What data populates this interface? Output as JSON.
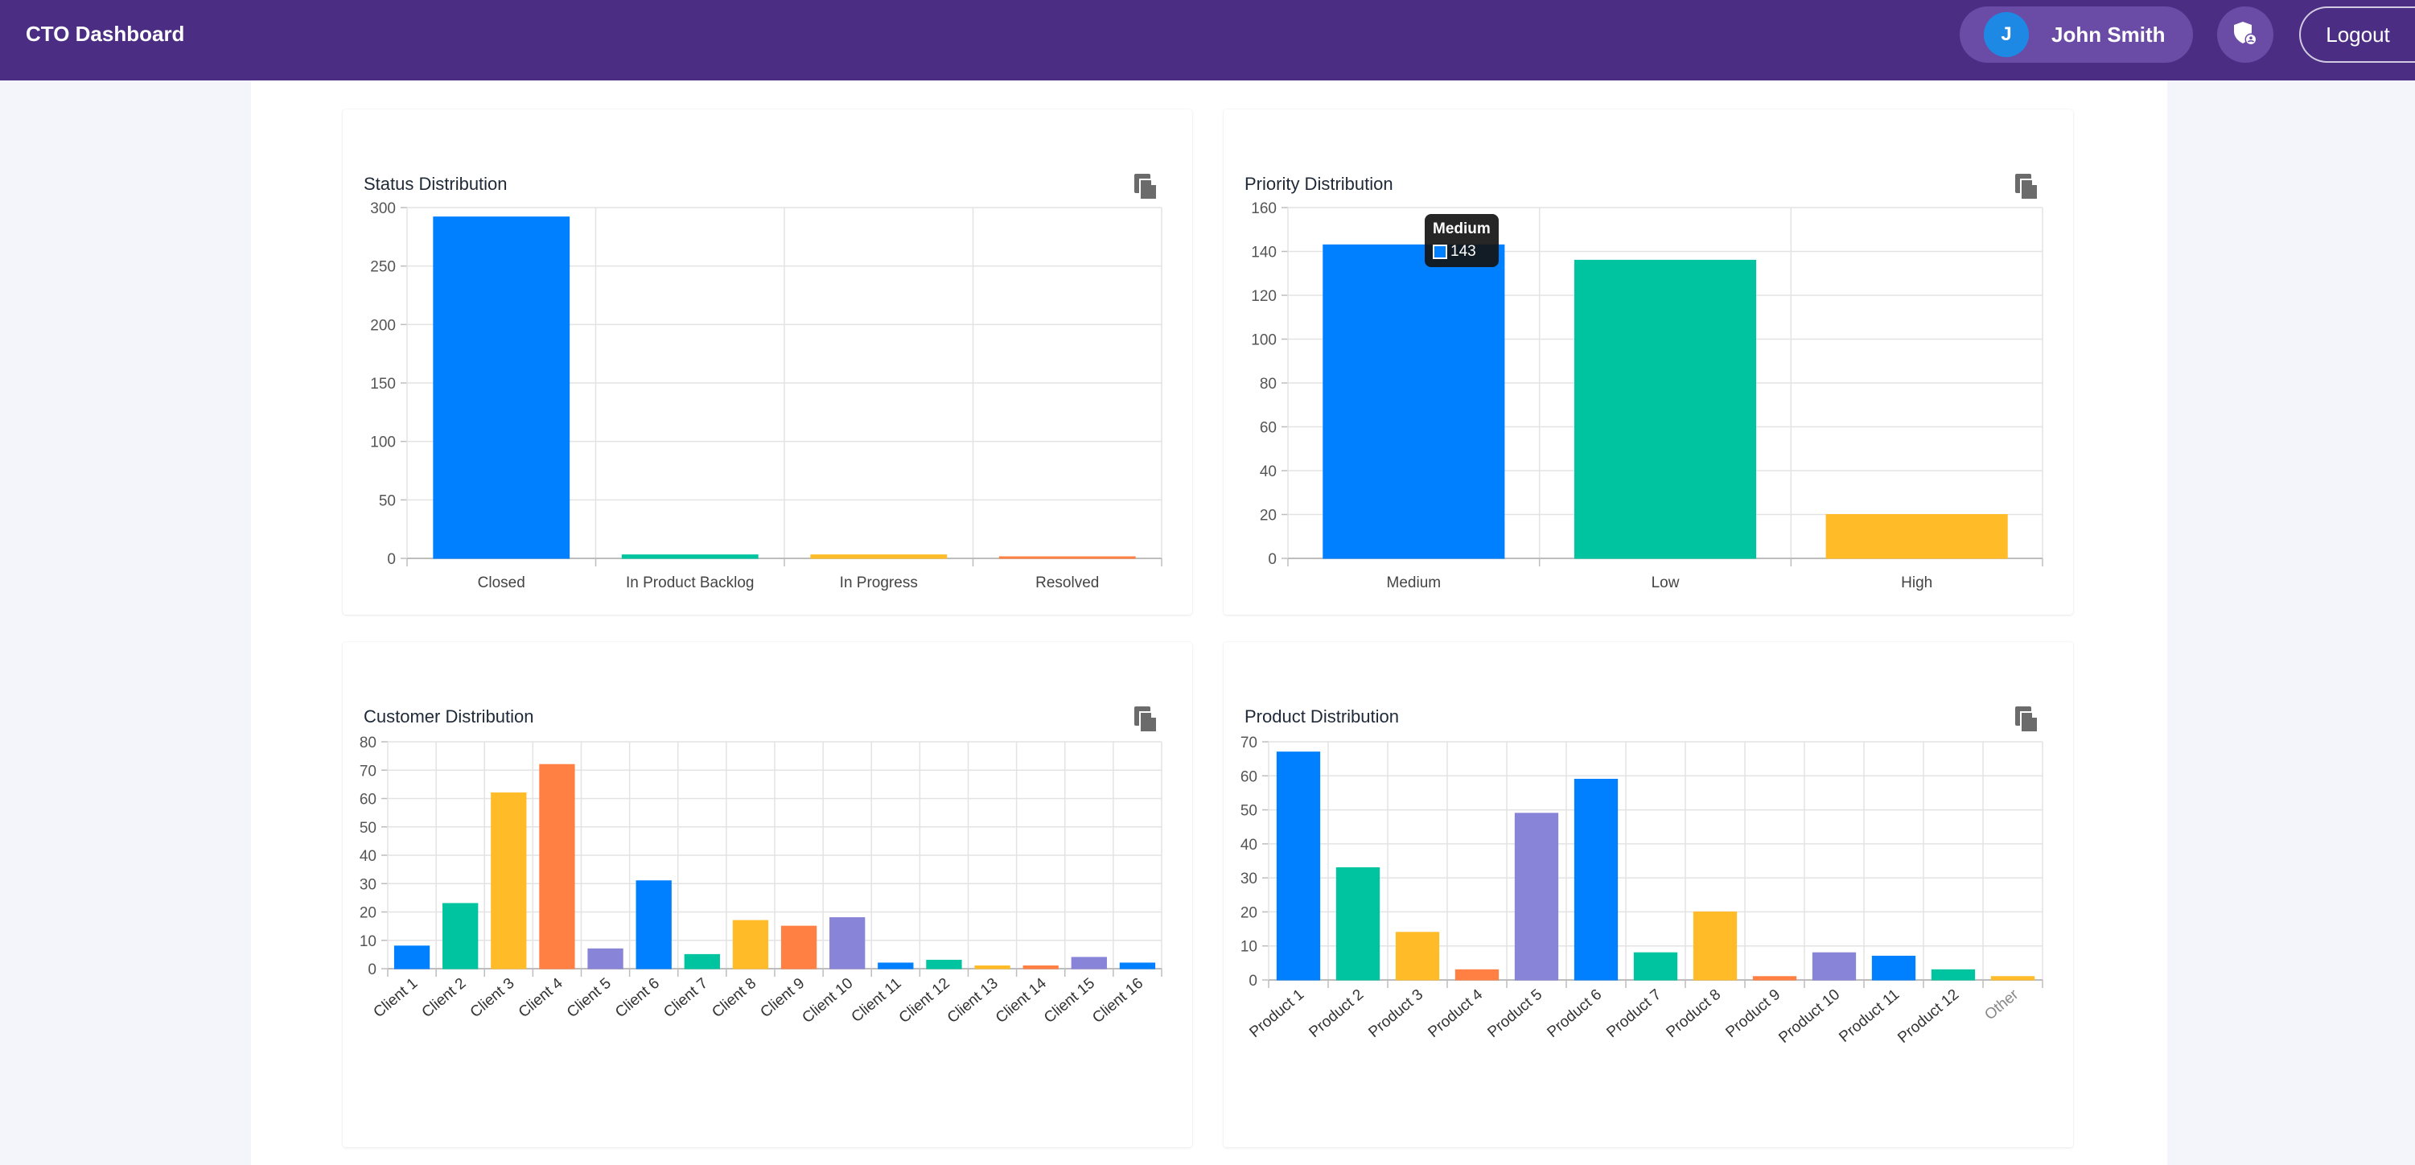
{
  "header": {
    "title": "CTO Dashboard",
    "user": {
      "initial": "J",
      "name": "John Smith"
    },
    "shield_icon": "shield-user-icon",
    "logout_label": "Logout"
  },
  "colors": {
    "header_bg": "#4b2d83",
    "blue": "#0080ff",
    "green": "#00c49f",
    "yellow": "#ffbb28",
    "orange": "#ff8042",
    "purple": "#8884d8"
  },
  "cards": {
    "status": {
      "title": "Status Distribution",
      "copy_icon": "copy-icon"
    },
    "priority": {
      "title": "Priority Distribution",
      "copy_icon": "copy-icon"
    },
    "customer": {
      "title": "Customer Distribution",
      "copy_icon": "copy-icon"
    },
    "product": {
      "title": "Product Distribution",
      "copy_icon": "copy-icon"
    }
  },
  "tooltip": {
    "title": "Medium",
    "value": "143"
  },
  "chart_data": [
    {
      "id": "status",
      "type": "bar",
      "title": "Status Distribution",
      "categories": [
        "Closed",
        "In Product Backlog",
        "In Progress",
        "Resolved"
      ],
      "values": [
        292,
        3,
        3,
        1
      ],
      "ylim": [
        0,
        300
      ],
      "yticks": [
        0,
        50,
        100,
        150,
        200,
        250,
        300
      ],
      "colors": [
        "#0080ff",
        "#00c49f",
        "#ffbb28",
        "#ff8042"
      ],
      "grid": true
    },
    {
      "id": "priority",
      "type": "bar",
      "title": "Priority Distribution",
      "categories": [
        "Medium",
        "Low",
        "High"
      ],
      "values": [
        143,
        136,
        20
      ],
      "ylim": [
        0,
        160
      ],
      "yticks": [
        0,
        20,
        40,
        60,
        80,
        100,
        120,
        140,
        160
      ],
      "colors": [
        "#0080ff",
        "#00c49f",
        "#ffbb28"
      ],
      "grid": true
    },
    {
      "id": "customer",
      "type": "bar",
      "title": "Customer Distribution",
      "categories": [
        "Client 1",
        "Client 2",
        "Client 3",
        "Client 4",
        "Client 5",
        "Client 6",
        "Client 7",
        "Client 8",
        "Client 9",
        "Client 10",
        "Client 11",
        "Client 12",
        "Client 13",
        "Client 14",
        "Client 15",
        "Client 16"
      ],
      "values": [
        8,
        23,
        62,
        72,
        7,
        31,
        5,
        17,
        15,
        18,
        2,
        3,
        1,
        1,
        4,
        2
      ],
      "ylim": [
        0,
        80
      ],
      "yticks": [
        0,
        10,
        20,
        30,
        40,
        50,
        60,
        70,
        80
      ],
      "colors": [
        "#0080ff",
        "#00c49f",
        "#ffbb28",
        "#ff8042",
        "#8884d8"
      ],
      "grid": true
    },
    {
      "id": "product",
      "type": "bar",
      "title": "Product Distribution",
      "categories": [
        "Product 1",
        "Product 2",
        "Product 3",
        "Product 4",
        "Product 5",
        "Product 6",
        "Product 7",
        "Product 8",
        "Product 9",
        "Product 10",
        "Product 11",
        "Product 12",
        "Other"
      ],
      "values": [
        67,
        33,
        14,
        3,
        49,
        59,
        8,
        20,
        1,
        8,
        7,
        3,
        1
      ],
      "ylim": [
        0,
        70
      ],
      "yticks": [
        0,
        10,
        20,
        30,
        40,
        50,
        60,
        70
      ],
      "colors": [
        "#0080ff",
        "#00c49f",
        "#ffbb28",
        "#ff8042",
        "#8884d8"
      ],
      "grid": true
    }
  ]
}
